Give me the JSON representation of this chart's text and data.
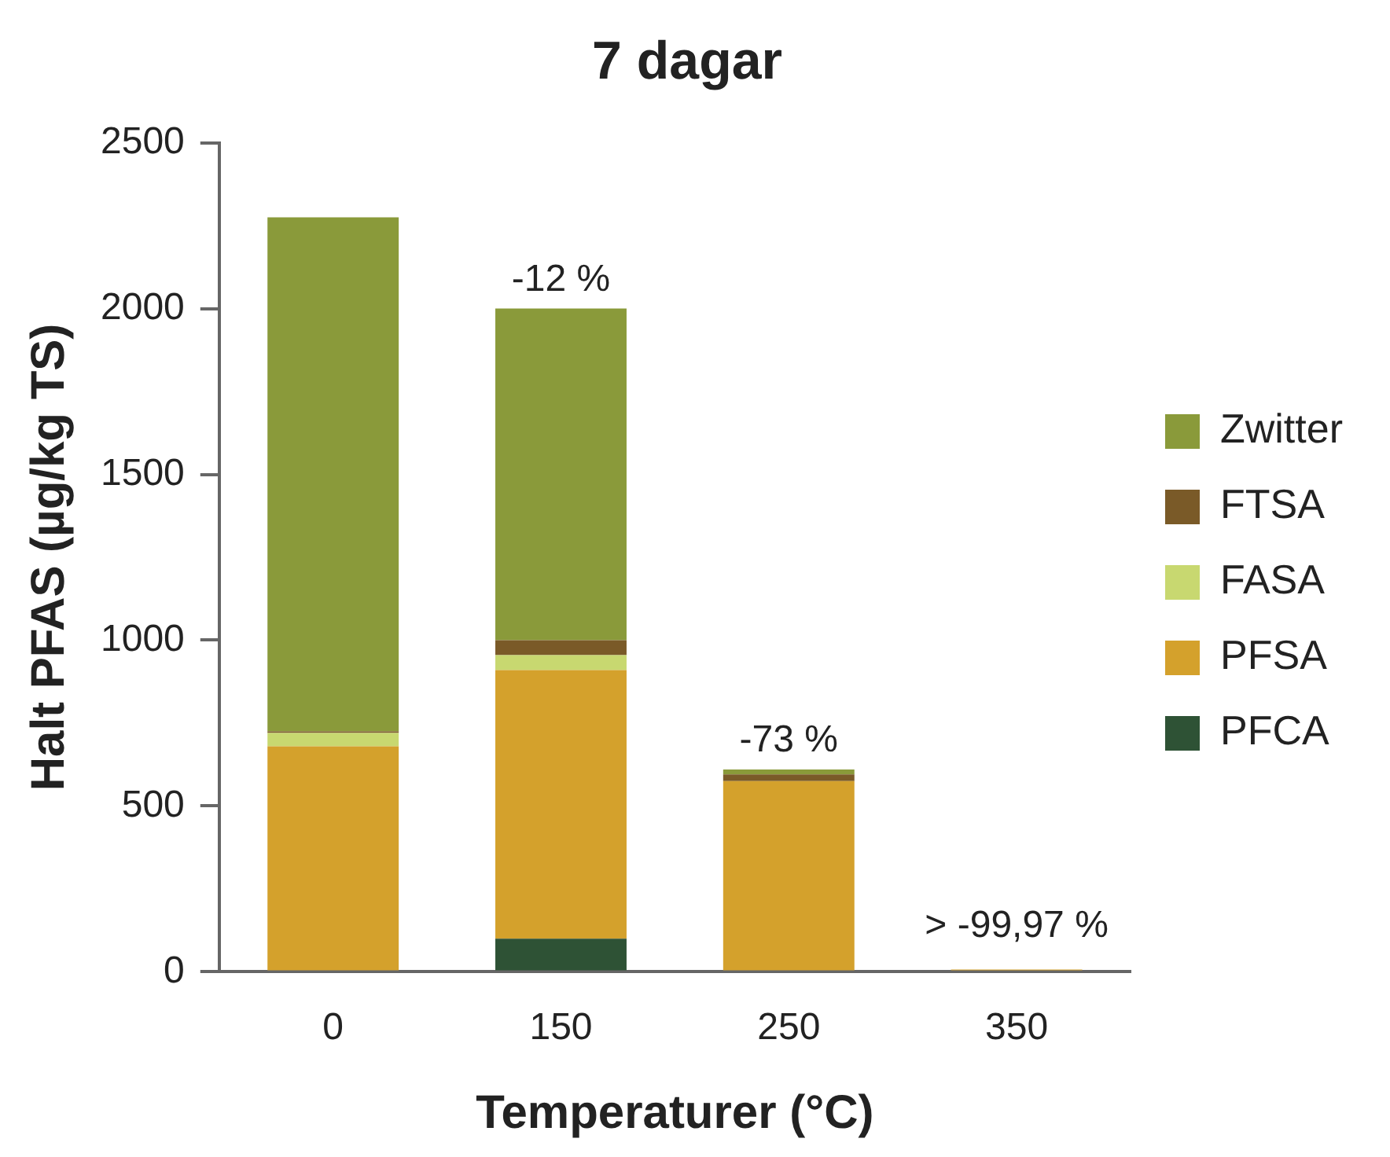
{
  "chart_data": {
    "type": "bar",
    "title": "7 dagar",
    "xlabel": "Temperaturer (°C)",
    "ylabel": "Halt PFAS (µg/kg TS)",
    "categories": [
      "0",
      "150",
      "250",
      "350"
    ],
    "stacked": true,
    "series": [
      {
        "name": "PFCA",
        "color": "#2e5235",
        "values": [
          0,
          100,
          0,
          0
        ]
      },
      {
        "name": "PFSA",
        "color": "#d4a12c",
        "values": [
          680,
          810,
          575,
          7
        ]
      },
      {
        "name": "FASA",
        "color": "#c8d870",
        "values": [
          40,
          45,
          0,
          0
        ]
      },
      {
        "name": "FTSA",
        "color": "#7a5a28",
        "values": [
          5,
          45,
          20,
          0
        ]
      },
      {
        "name": "Zwitter",
        "color": "#8a9a3a",
        "values": [
          1550,
          1000,
          15,
          0
        ]
      }
    ],
    "ylim": [
      0,
      2500
    ],
    "yticks": [
      0,
      500,
      1000,
      1500,
      2000,
      2500
    ],
    "grid": false,
    "legend": "right",
    "annotations": [
      {
        "text": "-12 %",
        "x": "150",
        "y": 2000
      },
      {
        "text": "-73 %",
        "x": "250",
        "y": 610
      },
      {
        "text": "> -99,97 %",
        "x": "350",
        "y": 5
      }
    ]
  }
}
